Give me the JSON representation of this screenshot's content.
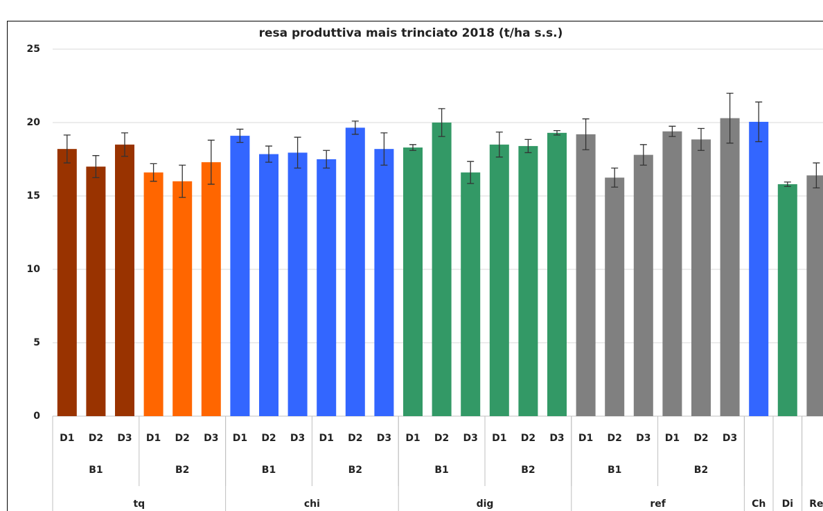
{
  "chart_data": {
    "type": "bar",
    "title": "resa produttiva mais trinciato 2018 (t/ha s.s.)",
    "categories": [
      "D1",
      "D2",
      "D3",
      "D1",
      "D2",
      "D3",
      "D1",
      "D2",
      "D3",
      "D1",
      "D2",
      "D3",
      "D1",
      "D2",
      "D3",
      "D1",
      "D2",
      "D3",
      "D1",
      "D2",
      "D3",
      "D1",
      "D2",
      "D3",
      null,
      null,
      null
    ],
    "group_levels": [
      [
        {
          "label": "B1",
          "span": 3
        },
        {
          "label": "B2",
          "span": 3
        },
        {
          "label": "B1",
          "span": 3
        },
        {
          "label": "B2",
          "span": 3
        },
        {
          "label": "B1",
          "span": 3
        },
        {
          "label": "B2",
          "span": 3
        },
        {
          "label": "B1",
          "span": 3
        },
        {
          "label": "B2",
          "span": 3
        },
        {
          "label": null,
          "span": 1
        },
        {
          "label": null,
          "span": 1
        },
        {
          "label": null,
          "span": 1
        }
      ],
      [
        {
          "label": "tq",
          "span": 6
        },
        {
          "label": "chi",
          "span": 6
        },
        {
          "label": "dig",
          "span": 6
        },
        {
          "label": "ref",
          "span": 6
        },
        {
          "label": "Ch",
          "span": 1
        },
        {
          "label": "Di",
          "span": 1
        },
        {
          "label": "Re",
          "span": 1
        }
      ]
    ],
    "values": [
      18.2,
      17.0,
      18.5,
      16.6,
      16.0,
      17.3,
      19.1,
      17.85,
      17.95,
      17.5,
      19.65,
      18.2,
      18.3,
      20.0,
      16.6,
      18.5,
      18.4,
      19.3,
      19.2,
      16.25,
      17.8,
      19.4,
      18.85,
      20.3,
      20.05,
      15.8,
      16.4
    ],
    "errors": [
      0.95,
      0.75,
      0.8,
      0.6,
      1.1,
      1.5,
      0.45,
      0.55,
      1.05,
      0.6,
      0.45,
      1.1,
      0.2,
      0.95,
      0.75,
      0.85,
      0.45,
      0.15,
      1.05,
      0.65,
      0.7,
      0.35,
      0.75,
      1.7,
      1.35,
      0.15,
      0.85
    ],
    "colors": [
      "#993300",
      "#993300",
      "#993300",
      "#ff6600",
      "#ff6600",
      "#ff6600",
      "#3366ff",
      "#3366ff",
      "#3366ff",
      "#3366ff",
      "#3366ff",
      "#3366ff",
      "#339966",
      "#339966",
      "#339966",
      "#339966",
      "#339966",
      "#339966",
      "#808080",
      "#808080",
      "#808080",
      "#808080",
      "#808080",
      "#808080",
      "#3366ff",
      "#339966",
      "#808080"
    ],
    "ylim": [
      0,
      25
    ],
    "yticks": [
      0,
      5,
      10,
      15,
      20,
      25
    ],
    "grid": true
  }
}
